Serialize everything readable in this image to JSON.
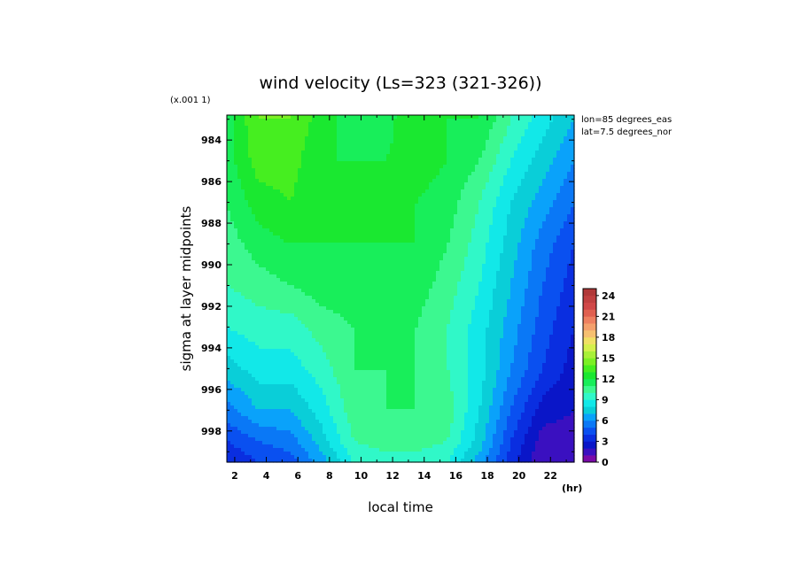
{
  "chart_data": {
    "type": "heatmap",
    "title": "wind velocity (Ls=323 (321-326))",
    "xlabel": "local time",
    "ylabel": "sigma at layer midpoints",
    "x_unit": "(hr)",
    "y_scale_note": "(x.001 1)",
    "annotations": [
      "lon=85 degrees_eas",
      "lat=7.5 degrees_nor"
    ],
    "x_ticks": [
      "2",
      "4",
      "6",
      "8",
      "10",
      "12",
      "14",
      "16",
      "18",
      "20",
      "22"
    ],
    "y_ticks": [
      "984",
      "986",
      "988",
      "990",
      "992",
      "994",
      "996",
      "998"
    ],
    "xlim": [
      1.5,
      23.5
    ],
    "ylim": [
      999.5,
      982.8
    ],
    "x": [
      1.5,
      3.5,
      5.5,
      7.5,
      9.5,
      11.5,
      13.5,
      15.5,
      17.5,
      19.5,
      21.5,
      23.5
    ],
    "y": [
      983.0,
      985.0,
      987.0,
      989.0,
      991.0,
      993.0,
      995.0,
      997.0,
      998.5,
      999.5
    ],
    "z": [
      [
        11.5,
        14.0,
        14.0,
        12.5,
        11.5,
        11.5,
        13.0,
        12.0,
        12.0,
        10.0,
        8.5,
        7.0
      ],
      [
        11.5,
        13.5,
        13.5,
        12.0,
        12.0,
        12.0,
        12.5,
        12.0,
        11.0,
        9.0,
        7.5,
        6.0
      ],
      [
        11.0,
        12.5,
        13.0,
        12.0,
        12.0,
        12.0,
        12.0,
        11.5,
        10.0,
        8.0,
        6.5,
        5.0
      ],
      [
        10.5,
        11.5,
        12.0,
        12.0,
        12.0,
        12.0,
        12.0,
        11.0,
        9.5,
        7.5,
        5.5,
        4.0
      ],
      [
        10.0,
        10.5,
        11.0,
        11.5,
        11.5,
        11.5,
        11.5,
        10.5,
        9.0,
        7.0,
        5.0,
        3.5
      ],
      [
        9.0,
        9.5,
        9.5,
        10.5,
        11.0,
        11.0,
        11.0,
        10.0,
        8.5,
        6.5,
        4.5,
        3.0
      ],
      [
        7.5,
        8.5,
        8.5,
        9.5,
        11.0,
        11.0,
        11.0,
        10.0,
        8.5,
        6.0,
        4.0,
        2.5
      ],
      [
        5.5,
        7.0,
        7.0,
        8.5,
        10.5,
        11.0,
        11.0,
        10.5,
        8.0,
        5.0,
        2.5,
        2.0
      ],
      [
        4.0,
        5.0,
        5.5,
        7.5,
        10.0,
        10.5,
        10.5,
        10.0,
        7.5,
        4.0,
        1.5,
        1.5
      ],
      [
        3.0,
        4.0,
        4.5,
        6.5,
        9.0,
        9.5,
        9.5,
        9.0,
        6.5,
        3.5,
        1.0,
        1.0
      ]
    ],
    "levels": [
      0,
      1,
      2,
      3,
      4,
      5,
      6,
      7,
      8,
      9,
      10,
      11,
      12,
      13,
      14,
      15,
      16,
      17,
      18,
      19,
      20,
      21,
      22,
      23,
      24,
      25
    ],
    "colorbar_ticks": [
      "0",
      "3",
      "6",
      "9",
      "12",
      "15",
      "18",
      "21",
      "24"
    ],
    "colormap": [
      "#7a0aa8",
      "#3a10c0",
      "#0a16c8",
      "#0a2ee0",
      "#0a50f0",
      "#0a78f6",
      "#0aa2fa",
      "#0aced8",
      "#12e8e8",
      "#30f8c8",
      "#3cf890",
      "#18ee5a",
      "#1ae830",
      "#46ee20",
      "#7cf024",
      "#a8f038",
      "#d4f04c",
      "#f0e064",
      "#f6c070",
      "#f4a06c",
      "#ee8060",
      "#e06050",
      "#d04848",
      "#c04040",
      "#b03838"
    ]
  }
}
